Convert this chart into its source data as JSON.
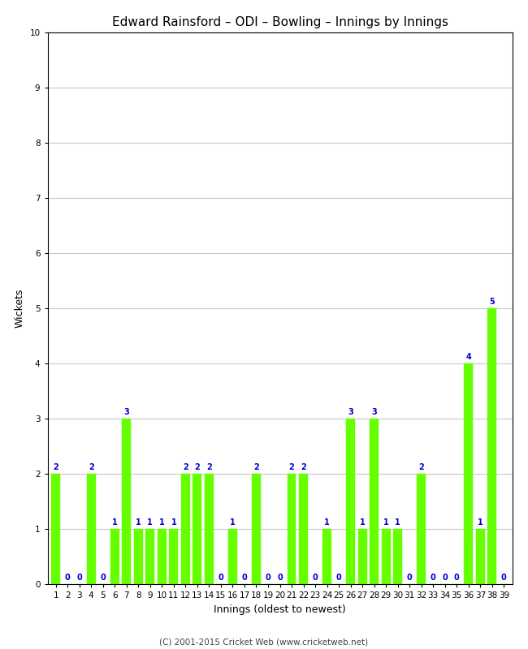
{
  "title": "Edward Rainsford – ODI – Bowling – Innings by Innings",
  "xlabel": "Innings (oldest to newest)",
  "ylabel": "Wickets",
  "footer": "(C) 2001-2015 Cricket Web (www.cricketweb.net)",
  "innings": [
    1,
    2,
    3,
    4,
    5,
    6,
    7,
    8,
    9,
    10,
    11,
    12,
    13,
    14,
    15,
    16,
    17,
    18,
    19,
    20,
    21,
    22,
    23,
    24,
    25,
    26,
    27,
    28,
    29,
    30,
    31,
    32,
    33,
    34,
    35,
    36,
    37,
    38,
    39
  ],
  "wickets": [
    2,
    0,
    0,
    2,
    0,
    1,
    3,
    1,
    1,
    1,
    1,
    2,
    2,
    2,
    0,
    1,
    0,
    2,
    0,
    0,
    2,
    2,
    0,
    1,
    0,
    3,
    1,
    3,
    1,
    1,
    0,
    2,
    0,
    0,
    0,
    4,
    1,
    5,
    0
  ],
  "bar_color": "#66ff00",
  "bar_edge_color": "#66ff00",
  "label_color": "#0000cc",
  "ylim": [
    0,
    10
  ],
  "yticks": [
    0,
    1,
    2,
    3,
    4,
    5,
    6,
    7,
    8,
    9,
    10
  ],
  "background_color": "#ffffff",
  "grid_color": "#c8c8c8",
  "title_fontsize": 11,
  "label_fontsize": 9,
  "tick_fontsize": 7.5,
  "bar_label_fontsize": 7
}
